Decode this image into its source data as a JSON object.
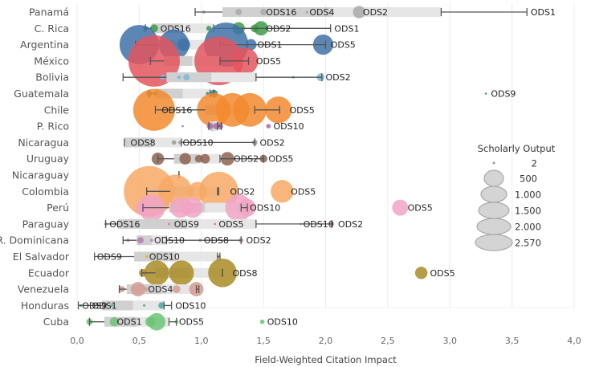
{
  "chart_data": {
    "type": "scatter",
    "title": "",
    "xlabel": "Field-Weighted Citation Impact",
    "ylabel": "",
    "xlim": [
      0,
      4
    ],
    "x_ticks": [
      "0,0",
      "0,5",
      "1,0",
      "1,5",
      "2,0",
      "2,5",
      "3,0",
      "3,5",
      "4,0"
    ],
    "x_tick_values": [
      0,
      0.5,
      1,
      1.5,
      2,
      2.5,
      3,
      3.5,
      4
    ],
    "grid": true,
    "size_legend": {
      "title": "Scholarly Output",
      "placement": "right",
      "entries": [
        {
          "label": "2",
          "value": 2
        },
        {
          "label": "500",
          "value": 500
        },
        {
          "label": "1.000",
          "value": 1000
        },
        {
          "label": "1.500",
          "value": 1500
        },
        {
          "label": "2.000",
          "value": 2000
        },
        {
          "label": "2.570",
          "value": 2570
        }
      ]
    },
    "rows": [
      {
        "country": "Panamá",
        "color": "#a9a9a9",
        "box": [
          1.17,
          2.93
        ],
        "whisker": [
          0.95,
          3.62
        ],
        "inner": [
          0.95,
          1.17
        ],
        "points": [
          {
            "x": 1.02,
            "s": 10
          },
          {
            "x": 1.3,
            "s": 40
          },
          {
            "x": 1.5,
            "s": 40
          },
          {
            "x": 1.85,
            "s": 8
          },
          {
            "x": 2.27,
            "s": 150
          }
        ],
        "labels": [
          {
            "x": 1.52,
            "t": "ODS16"
          },
          {
            "x": 1.87,
            "t": "ODS4"
          },
          {
            "x": 2.3,
            "t": "ODS2"
          },
          {
            "x": 3.65,
            "t": "ODS1"
          }
        ]
      },
      {
        "country": "C. Rica",
        "color": "#3c9a47",
        "box": [
          0.6,
          1.1
        ],
        "whisker": [
          0.55,
          2.04
        ],
        "inner": [
          0.55,
          0.6
        ],
        "points": [
          {
            "x": 0.55,
            "s": 25
          },
          {
            "x": 0.62,
            "s": 60
          },
          {
            "x": 1.06,
            "s": 25
          },
          {
            "x": 1.3,
            "s": 150
          },
          {
            "x": 1.43,
            "s": 60
          },
          {
            "x": 1.48,
            "s": 200
          }
        ],
        "labels": [
          {
            "x": 0.67,
            "t": "ODS16"
          },
          {
            "x": 1.52,
            "t": "ODS2"
          },
          {
            "x": 2.07,
            "t": "ODS1"
          }
        ]
      },
      {
        "country": "Argentina",
        "color": "#3f72a8",
        "box": [
          0.65,
          1.15
        ],
        "whisker": [
          0.47,
          2.0
        ],
        "inner": [
          0.47,
          0.65
        ],
        "points": [
          {
            "x": 0.5,
            "s": 1500
          },
          {
            "x": 0.78,
            "s": 900
          },
          {
            "x": 0.86,
            "s": 150
          },
          {
            "x": 1.2,
            "s": 1900
          },
          {
            "x": 1.4,
            "s": 120
          },
          {
            "x": 1.98,
            "s": 400
          }
        ],
        "labels": [
          {
            "x": 1.45,
            "t": "ODS1"
          },
          {
            "x": 2.04,
            "t": "ODS5"
          }
        ]
      },
      {
        "country": "México",
        "color": "#e3555d",
        "box": [
          0.7,
          1.15
        ],
        "whisker": [
          0.59,
          1.38
        ],
        "inner": [
          0.59,
          0.7
        ],
        "points": [
          {
            "x": 0.62,
            "s": 2570
          },
          {
            "x": 1.14,
            "s": 2300
          },
          {
            "x": 1.35,
            "s": 700
          }
        ],
        "labels": [
          {
            "x": 1.44,
            "t": "ODS5"
          }
        ]
      },
      {
        "country": "Bolivia",
        "color": "#7fb7dc",
        "box": [
          0.72,
          1.44
        ],
        "whisker": [
          0.37,
          1.97
        ],
        "inner": [
          0.37,
          0.72
        ],
        "points": [
          {
            "x": 0.69,
            "s": 30
          },
          {
            "x": 0.82,
            "s": 15
          },
          {
            "x": 0.88,
            "s": 40
          },
          {
            "x": 1.74,
            "s": 8
          },
          {
            "x": 1.96,
            "s": 60
          }
        ],
        "labels": [
          {
            "x": 2.0,
            "t": "ODS2"
          }
        ]
      },
      {
        "country": "Guatemala",
        "color": "#2a8a84",
        "box": [
          0.63,
          1.07
        ],
        "whisker": [
          0.58,
          1.1
        ],
        "inner": [
          0.58,
          0.63
        ],
        "points": [
          {
            "x": 0.58,
            "s": 30
          },
          {
            "x": 0.63,
            "s": 15
          },
          {
            "x": 1.05,
            "s": 10
          },
          {
            "x": 1.1,
            "s": 60
          },
          {
            "x": 3.29,
            "s": 3
          }
        ],
        "labels": [
          {
            "x": 3.33,
            "t": "ODS9"
          }
        ]
      },
      {
        "country": "Chile",
        "color": "#f28a2e",
        "box": [
          1.03,
          1.43
        ],
        "whisker": [
          0.63,
          1.63
        ],
        "inner": [
          0.63,
          1.03
        ],
        "points": [
          {
            "x": 0.62,
            "s": 1700
          },
          {
            "x": 1.1,
            "s": 1100
          },
          {
            "x": 1.25,
            "s": 1100
          },
          {
            "x": 1.39,
            "s": 1100
          },
          {
            "x": 1.62,
            "s": 700
          }
        ],
        "labels": [
          {
            "x": 0.68,
            "t": "ODS16"
          },
          {
            "x": 1.71,
            "t": "ODS5"
          }
        ]
      },
      {
        "country": "P. Rico",
        "color": "#a56ca8",
        "box": [
          1.07,
          1.13
        ],
        "whisker": [
          1.06,
          1.16
        ],
        "inner": [
          1.06,
          1.07
        ],
        "points": [
          {
            "x": 0.85,
            "s": 4
          },
          {
            "x": 1.07,
            "s": 40
          },
          {
            "x": 1.12,
            "s": 40
          },
          {
            "x": 1.15,
            "s": 40
          },
          {
            "x": 1.54,
            "s": 20
          }
        ],
        "labels": [
          {
            "x": 1.58,
            "t": "ODS10"
          }
        ]
      },
      {
        "country": "Nicaragua",
        "color": "#999999",
        "box": [
          0.38,
          0.84
        ],
        "whisker": [
          0.38,
          1.43
        ],
        "inner": [
          0.38,
          0.39
        ],
        "points": [
          {
            "x": 0.78,
            "s": 20
          },
          {
            "x": 0.83,
            "s": 15
          },
          {
            "x": 1.43,
            "s": 30
          }
        ],
        "labels": [
          {
            "x": 0.43,
            "t": "ODS8"
          },
          {
            "x": 0.85,
            "t": "ODS10"
          },
          {
            "x": 1.47,
            "t": "ODS2"
          }
        ]
      },
      {
        "country": "Uruguay",
        "color": "#8e6350",
        "box": [
          0.78,
          1.15
        ],
        "whisker": [
          0.65,
          1.5
        ],
        "inner": [
          0.65,
          0.78
        ],
        "points": [
          {
            "x": 0.65,
            "s": 150
          },
          {
            "x": 0.87,
            "s": 130
          },
          {
            "x": 0.98,
            "s": 60
          },
          {
            "x": 1.03,
            "s": 90
          },
          {
            "x": 1.21,
            "s": 180
          },
          {
            "x": 1.5,
            "s": 60
          }
        ],
        "labels": [
          {
            "x": 1.26,
            "t": "ODS2"
          },
          {
            "x": 1.54,
            "t": "ODS5"
          }
        ]
      },
      {
        "country": "Nicaraguay",
        "color": "#d64b6a",
        "box": [
          0.82,
          0.82
        ],
        "whisker": [
          0.82,
          0.82
        ],
        "inner": [
          0.82,
          0.82
        ],
        "points": [
          {
            "x": 0.82,
            "s": 4
          }
        ],
        "labels": []
      },
      {
        "country": "Colombia",
        "color": "#f7a965",
        "box": [
          0.75,
          1.14
        ],
        "whisker": [
          0.56,
          1.13
        ],
        "inner": [
          0.56,
          0.75
        ],
        "points": [
          {
            "x": 0.58,
            "s": 2500
          },
          {
            "x": 0.79,
            "s": 1100
          },
          {
            "x": 0.97,
            "s": 350
          },
          {
            "x": 1.14,
            "s": 1500
          },
          {
            "x": 1.65,
            "s": 500
          }
        ],
        "labels": [
          {
            "x": 1.23,
            "t": "ODS2"
          },
          {
            "x": 1.72,
            "t": "ODS5"
          }
        ]
      },
      {
        "country": "Perú",
        "color": "#f0a5c4",
        "box": [
          0.74,
          1.32
        ],
        "whisker": [
          0.53,
          1.37
        ],
        "inner": [
          0.53,
          0.74
        ],
        "points": [
          {
            "x": 0.53,
            "s": 200
          },
          {
            "x": 0.6,
            "s": 700
          },
          {
            "x": 0.83,
            "s": 400
          },
          {
            "x": 0.88,
            "s": 200
          },
          {
            "x": 0.93,
            "s": 400
          },
          {
            "x": 1.3,
            "s": 700
          },
          {
            "x": 1.37,
            "s": 300
          },
          {
            "x": 2.6,
            "s": 250
          }
        ],
        "labels": [
          {
            "x": 1.39,
            "t": "ODS10"
          },
          {
            "x": 2.66,
            "t": "ODS5"
          }
        ]
      },
      {
        "country": "Paraguay",
        "color": "#d5608d",
        "box": [
          0.33,
          1.44
        ],
        "whisker": [
          0.23,
          2.05
        ],
        "inner": [
          0.23,
          0.33
        ],
        "points": [
          {
            "x": 0.23,
            "s": 8
          },
          {
            "x": 0.74,
            "s": 4
          },
          {
            "x": 1.11,
            "s": 4
          },
          {
            "x": 1.8,
            "s": 4
          },
          {
            "x": 2.05,
            "s": 15
          }
        ],
        "labels": [
          {
            "x": 0.26,
            "t": "ODS16"
          },
          {
            "x": 0.78,
            "t": "ODS9"
          },
          {
            "x": 1.14,
            "t": "ODS5"
          },
          {
            "x": 1.82,
            "t": "ODS10"
          },
          {
            "x": 2.1,
            "t": "ODS2"
          }
        ]
      },
      {
        "country": "R. Dominicana",
        "color": "#b67ab3",
        "box": [
          0.48,
          0.72
        ],
        "whisker": [
          0.37,
          1.32
        ],
        "inner": [
          0.37,
          0.48
        ],
        "points": [
          {
            "x": 0.41,
            "s": 10
          },
          {
            "x": 0.51,
            "s": 40
          },
          {
            "x": 0.6,
            "s": 8
          },
          {
            "x": 0.99,
            "s": 8
          },
          {
            "x": 1.32,
            "s": 20
          }
        ],
        "labels": [
          {
            "x": 0.62,
            "t": "ODS10"
          },
          {
            "x": 1.02,
            "t": "ODS8"
          },
          {
            "x": 1.36,
            "t": "ODS2"
          }
        ]
      },
      {
        "country": "El Salvador",
        "color": "#d8b24a",
        "box": [
          0.46,
          1.13
        ],
        "whisker": [
          0.14,
          1.15
        ],
        "inner": [
          0.14,
          0.46
        ],
        "points": [
          {
            "x": 0.56,
            "s": 8
          },
          {
            "x": 1.14,
            "s": 15
          }
        ],
        "labels": [
          {
            "x": 0.16,
            "t": "ODS9"
          },
          {
            "x": 0.58,
            "t": "ODS10"
          }
        ]
      },
      {
        "country": "Ecuador",
        "color": "#a98b24",
        "box": [
          0.63,
          1.17
        ],
        "whisker": [
          0.52,
          1.17
        ],
        "inner": [
          0.52,
          0.63
        ],
        "points": [
          {
            "x": 0.53,
            "s": 60
          },
          {
            "x": 0.64,
            "s": 600
          },
          {
            "x": 0.84,
            "s": 600
          },
          {
            "x": 1.17,
            "s": 800
          },
          {
            "x": 2.77,
            "s": 150
          }
        ],
        "labels": [
          {
            "x": 1.25,
            "t": "ODS8"
          },
          {
            "x": 2.84,
            "t": "ODS5"
          }
        ]
      },
      {
        "country": "Venezuela",
        "color": "#d39c8f",
        "box": [
          0.4,
          0.96
        ],
        "whisker": [
          0.34,
          0.98
        ],
        "inner": [
          0.34,
          0.4
        ],
        "points": [
          {
            "x": 0.36,
            "s": 40
          },
          {
            "x": 0.49,
            "s": 200
          },
          {
            "x": 0.55,
            "s": 20
          },
          {
            "x": 0.8,
            "s": 60
          },
          {
            "x": 0.96,
            "s": 200
          }
        ],
        "labels": [
          {
            "x": 0.57,
            "t": "ODS4"
          }
        ]
      },
      {
        "country": "Honduras",
        "color": "#4aa7a0",
        "box": [
          0.2,
          0.7
        ],
        "whisker": [
          0.01,
          0.76
        ],
        "inner": [
          0.01,
          0.2
        ],
        "points": [
          {
            "x": 0.03,
            "s": 8
          },
          {
            "x": 0.28,
            "s": 8
          },
          {
            "x": 0.54,
            "s": 6
          },
          {
            "x": 0.68,
            "s": 40
          }
        ],
        "labels": [
          {
            "x": 0.04,
            "t": "ODS9"
          },
          {
            "x": 0.12,
            "t": "ODS1"
          },
          {
            "x": 0.79,
            "t": "ODS10"
          }
        ]
      },
      {
        "country": "Cuba",
        "color": "#6cc474",
        "box": [
          0.22,
          0.74
        ],
        "whisker": [
          0.1,
          0.8
        ],
        "inner": [
          0.1,
          0.3
        ],
        "points": [
          {
            "x": 0.1,
            "s": 40
          },
          {
            "x": 0.3,
            "s": 80
          },
          {
            "x": 0.59,
            "s": 100
          },
          {
            "x": 0.64,
            "s": 300
          },
          {
            "x": 0.8,
            "s": 15
          },
          {
            "x": 1.49,
            "s": 20
          }
        ],
        "labels": [
          {
            "x": 0.32,
            "t": "ODS1"
          },
          {
            "x": 0.82,
            "t": "ODS5"
          },
          {
            "x": 1.53,
            "t": "ODS10"
          }
        ]
      }
    ]
  }
}
